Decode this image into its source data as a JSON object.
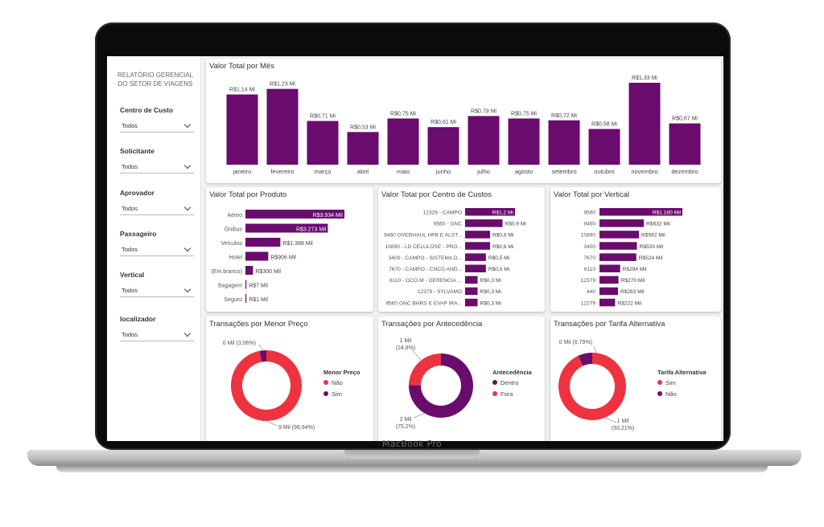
{
  "device_label": "MacBook Pro",
  "colors": {
    "accent": "#6a0b6e",
    "accent2": "#ee3340",
    "panel": "#ffffff"
  },
  "sidebar": {
    "title": "RELATÓRIO GERENCIAL DO SETOR DE VIAGENS",
    "filters": [
      {
        "label": "Centro de Custo",
        "value": "Todos"
      },
      {
        "label": "Solicitante",
        "value": "Todos"
      },
      {
        "label": "Aprovador",
        "value": "Todos"
      },
      {
        "label": "Passageiro",
        "value": "Todos"
      },
      {
        "label": "Vertical",
        "value": "Todos"
      },
      {
        "label": "localizador",
        "value": "Todos"
      }
    ]
  },
  "chart_data": [
    {
      "type": "bar",
      "title": "Valor Total por Mês",
      "categories": [
        "janeiro",
        "fevereiro",
        "março",
        "abril",
        "maio",
        "junho",
        "julho",
        "agosto",
        "setembro",
        "outubro",
        "novembro",
        "dezembro"
      ],
      "values": [
        1.14,
        1.23,
        0.71,
        0.53,
        0.75,
        0.61,
        0.79,
        0.75,
        0.72,
        0.58,
        1.33,
        0.67
      ],
      "labels": [
        "R$1,14 Mi",
        "R$1,23 Mi",
        "R$0,71 Mi",
        "R$0,53 Mi",
        "R$0,75 Mi",
        "R$0,61 Mi",
        "R$0,79 Mi",
        "R$0,75 Mi",
        "R$0,72 Mi",
        "R$0,58 Mi",
        "R$1,33 Mi",
        "R$0,67 Mi"
      ]
    },
    {
      "type": "bar",
      "orientation": "horizontal",
      "title": "Valor Total por Produto",
      "categories": [
        "Aéreo",
        "Ônibus",
        "Veículos",
        "Hotel",
        "(Em branco)",
        "Bagagem",
        "Seguro"
      ],
      "values": [
        3934,
        3273,
        1388,
        906,
        300,
        7,
        1
      ],
      "labels": [
        "R$3.934 Mil",
        "R$3.273 Mil",
        "R$1.388 Mil",
        "R$906 Mil",
        "R$300 Mil",
        "R$7 Mil",
        "R$1 Mil"
      ]
    },
    {
      "type": "bar",
      "orientation": "horizontal",
      "title": "Valor Total por Centro de Custos",
      "categories": [
        "12329 - CAMPO",
        "9560 - GNC",
        "9460 OVERHAUL HPB E ALST...",
        "10890 - LD CELULOSE - PRO...",
        "3400 - CAMPO - SISTEMA D...",
        "7670 - CAMPO - CNCG AND...",
        "6110 - GCO-M - GERENCIA ...",
        "12379 - SYLVAMO",
        "9560 GNC BHRS E EVAP IRA..."
      ],
      "values": [
        1.2,
        0.9,
        0.6,
        0.6,
        0.5,
        0.5,
        0.3,
        0.3,
        0.3
      ],
      "labels": [
        "R$1,2 Mi",
        "R$0,9 Mi",
        "R$0,6 Mi",
        "R$0,6 Mi",
        "R$0,5 Mi",
        "R$0,5 Mi",
        "R$0,3 Mi",
        "R$0,3 Mi",
        "R$0,3 Mi"
      ]
    },
    {
      "type": "bar",
      "orientation": "horizontal",
      "title": "Valor Total por Vertical",
      "categories": [
        "9560",
        "9460",
        "10890",
        "3400",
        "7670",
        "6110",
        "12379",
        "440",
        "12279"
      ],
      "values": [
        1180,
        632,
        562,
        533,
        524,
        294,
        270,
        263,
        222
      ],
      "labels": [
        "R$1.180 Mil",
        "R$632 Mil",
        "R$562 Mil",
        "R$533 Mil",
        "R$524 Mil",
        "R$294 Mil",
        "R$270 Mil",
        "R$263 Mil",
        "R$222 Mil"
      ]
    },
    {
      "type": "pie",
      "title": "Transações por Menor Preço",
      "legend_title": "Menor Preço",
      "slices": [
        {
          "name": "Não",
          "value": 96.94,
          "color": "#ee3340",
          "label_line1": "9 Mil (96,94%)",
          "label_line2": ""
        },
        {
          "name": "Sim",
          "value": 3.06,
          "color": "#6a0b6e",
          "label_line1": "0 Mil (3,06%)",
          "label_line2": ""
        }
      ]
    },
    {
      "type": "pie",
      "title": "Transações por Antecedência",
      "legend_title": "Antecedência",
      "slices": [
        {
          "name": "Dentro",
          "value": 75.2,
          "color": "#6a0b6e",
          "label_line1": "2 Mil",
          "label_line2": "(75,2%)"
        },
        {
          "name": "Fora",
          "value": 24.8,
          "color": "#ee3340",
          "label_line1": "1 Mil",
          "label_line2": "(24,8%)"
        }
      ]
    },
    {
      "type": "pie",
      "title": "Transações por Tarifa Alternativa",
      "legend_title": "Tarifa Alternativa",
      "slices": [
        {
          "name": "Sim",
          "value": 93.21,
          "color": "#ee3340",
          "label_line1": "1 Mil",
          "label_line2": "(93,21%)"
        },
        {
          "name": "Não",
          "value": 6.79,
          "color": "#6a0b6e",
          "label_line1": "0 Mil (6,79%)",
          "label_line2": ""
        }
      ]
    }
  ]
}
